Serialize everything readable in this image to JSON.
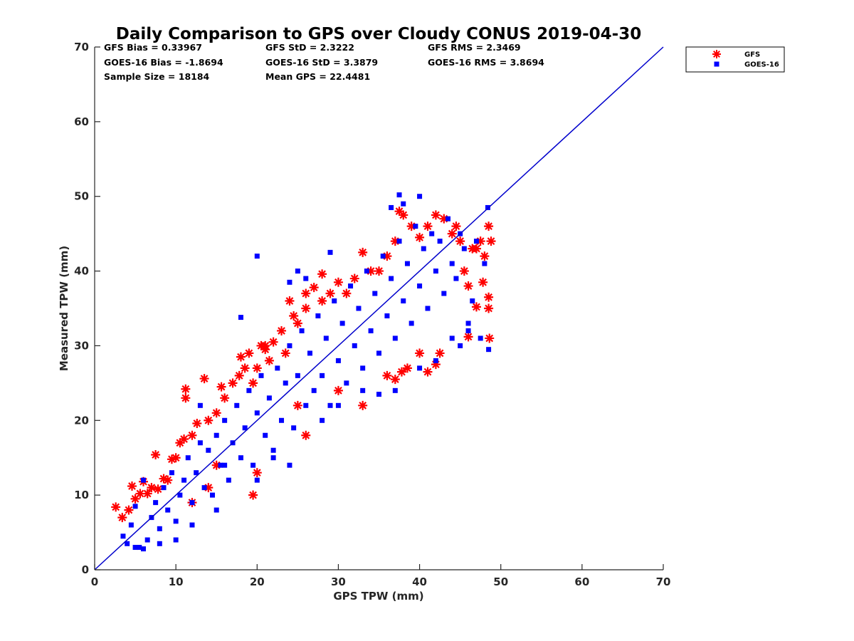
{
  "chart_data": {
    "type": "scatter",
    "title": "Daily Comparison to GPS over Cloudy CONUS 2019-04-30",
    "xlabel": "GPS TPW (mm)",
    "ylabel": "Measured TPW (mm)",
    "xlim": [
      0,
      70
    ],
    "ylim": [
      0,
      70
    ],
    "xticks": [
      0,
      10,
      20,
      30,
      40,
      50,
      60,
      70
    ],
    "yticks": [
      0,
      10,
      20,
      30,
      40,
      50,
      60,
      70
    ],
    "grid": false,
    "legend_position": "outside-top-right",
    "reference_line": {
      "from": [
        0,
        0
      ],
      "to": [
        70,
        70
      ],
      "color": "#0000cc"
    },
    "stats": [
      [
        "GFS Bias = 0.33967",
        "GFS StD = 2.3222",
        "GFS RMS = 2.3469"
      ],
      [
        "GOES-16 Bias = -1.8694",
        "GOES-16 StD = 3.3879",
        "GOES-16 RMS = 3.8694"
      ],
      [
        "Sample Size = 18184",
        "Mean GPS = 22.4481",
        ""
      ]
    ],
    "series": [
      {
        "name": "GFS",
        "marker": "asterisk",
        "color": "#ff0000",
        "points": [
          [
            2.6,
            8.4
          ],
          [
            3.4,
            7
          ],
          [
            4.2,
            8
          ],
          [
            4.6,
            11.2
          ],
          [
            5,
            9.5
          ],
          [
            5.6,
            10.2
          ],
          [
            6,
            11.8
          ],
          [
            6.5,
            10.2
          ],
          [
            7,
            11
          ],
          [
            7.5,
            15.4
          ],
          [
            7.8,
            10.8
          ],
          [
            8.5,
            12.2
          ],
          [
            9,
            12
          ],
          [
            9.5,
            14.8
          ],
          [
            10,
            15
          ],
          [
            10.5,
            17
          ],
          [
            11,
            17.5
          ],
          [
            11.2,
            24.2
          ],
          [
            11.2,
            23
          ],
          [
            12,
            18
          ],
          [
            12.6,
            19.6
          ],
          [
            13.5,
            25.6
          ],
          [
            14,
            20
          ],
          [
            15,
            21
          ],
          [
            15.6,
            24.5
          ],
          [
            16,
            23
          ],
          [
            17,
            25
          ],
          [
            17.8,
            26
          ],
          [
            18,
            28.5
          ],
          [
            18.5,
            27
          ],
          [
            19,
            29
          ],
          [
            19.5,
            25
          ],
          [
            20,
            27
          ],
          [
            20.5,
            30
          ],
          [
            21,
            30
          ],
          [
            21,
            29.5
          ],
          [
            21.5,
            28
          ],
          [
            22,
            30.5
          ],
          [
            23,
            32
          ],
          [
            23.5,
            29
          ],
          [
            24,
            36
          ],
          [
            24.5,
            34
          ],
          [
            25,
            33
          ],
          [
            26,
            37
          ],
          [
            26,
            35
          ],
          [
            27,
            37.8
          ],
          [
            28,
            39.6
          ],
          [
            28,
            36
          ],
          [
            29,
            37
          ],
          [
            30,
            38.5
          ],
          [
            31,
            37
          ],
          [
            32,
            39
          ],
          [
            33,
            42.5
          ],
          [
            34,
            40
          ],
          [
            35,
            40
          ],
          [
            36,
            42
          ],
          [
            37,
            44
          ],
          [
            37.5,
            48
          ],
          [
            38,
            47.5
          ],
          [
            39,
            46
          ],
          [
            40,
            44.5
          ],
          [
            41,
            46
          ],
          [
            42,
            47.5
          ],
          [
            43,
            47
          ],
          [
            44,
            45
          ],
          [
            44.5,
            46
          ],
          [
            45,
            44
          ],
          [
            45.5,
            40
          ],
          [
            46,
            38
          ],
          [
            46,
            31.2
          ],
          [
            46.5,
            43
          ],
          [
            47,
            43
          ],
          [
            47,
            35.2
          ],
          [
            47.5,
            44
          ],
          [
            47.8,
            38.5
          ],
          [
            48,
            42
          ],
          [
            48.5,
            46
          ],
          [
            48.8,
            44
          ],
          [
            48.5,
            36.5
          ],
          [
            48.5,
            35
          ],
          [
            48.6,
            31
          ],
          [
            36,
            26
          ],
          [
            37,
            25.5
          ],
          [
            37.8,
            26.5
          ],
          [
            38.5,
            27
          ],
          [
            40,
            29
          ],
          [
            41,
            26.5
          ],
          [
            42,
            27.5
          ],
          [
            42.5,
            29
          ],
          [
            20,
            13
          ],
          [
            19.5,
            10
          ],
          [
            26,
            18
          ],
          [
            33,
            22
          ],
          [
            30,
            24
          ],
          [
            25,
            22
          ],
          [
            15,
            14
          ],
          [
            14,
            11
          ],
          [
            12,
            9
          ]
        ]
      },
      {
        "name": "GOES-16",
        "marker": "square",
        "color": "#0000ff",
        "points": [
          [
            3.5,
            4.5
          ],
          [
            4,
            3.5
          ],
          [
            4.5,
            6
          ],
          [
            5,
            8.5
          ],
          [
            5.5,
            3
          ],
          [
            6,
            12
          ],
          [
            6.5,
            4
          ],
          [
            7,
            7
          ],
          [
            7.5,
            9
          ],
          [
            8,
            5.5
          ],
          [
            8.5,
            11
          ],
          [
            9,
            8
          ],
          [
            9.5,
            13
          ],
          [
            10,
            6.5
          ],
          [
            10.5,
            10
          ],
          [
            11,
            12
          ],
          [
            11.5,
            15
          ],
          [
            12,
            9
          ],
          [
            12.5,
            13
          ],
          [
            13,
            17
          ],
          [
            13.5,
            11
          ],
          [
            14,
            16
          ],
          [
            14.5,
            10
          ],
          [
            15,
            18
          ],
          [
            15.5,
            14
          ],
          [
            16,
            20
          ],
          [
            16.5,
            12
          ],
          [
            17,
            17
          ],
          [
            17.5,
            22
          ],
          [
            18,
            15
          ],
          [
            18.5,
            19
          ],
          [
            19,
            24
          ],
          [
            19.5,
            14
          ],
          [
            20,
            21
          ],
          [
            20.5,
            26
          ],
          [
            21,
            18
          ],
          [
            21.5,
            23
          ],
          [
            22,
            16
          ],
          [
            22.5,
            27
          ],
          [
            23,
            20
          ],
          [
            23.5,
            25
          ],
          [
            24,
            30
          ],
          [
            24.5,
            19
          ],
          [
            25,
            26
          ],
          [
            25.5,
            32
          ],
          [
            26,
            22
          ],
          [
            26.5,
            29
          ],
          [
            27,
            24
          ],
          [
            27.5,
            34
          ],
          [
            28,
            26
          ],
          [
            28.5,
            31
          ],
          [
            29,
            22
          ],
          [
            29.5,
            36
          ],
          [
            30,
            28
          ],
          [
            30.5,
            33
          ],
          [
            31,
            25
          ],
          [
            31.5,
            38
          ],
          [
            32,
            30
          ],
          [
            32.5,
            35
          ],
          [
            33,
            27
          ],
          [
            33.5,
            40
          ],
          [
            34,
            32
          ],
          [
            34.5,
            37
          ],
          [
            35,
            29
          ],
          [
            35.5,
            42
          ],
          [
            36,
            34
          ],
          [
            36.5,
            39
          ],
          [
            37,
            31
          ],
          [
            37.5,
            44
          ],
          [
            38,
            36
          ],
          [
            38.5,
            41
          ],
          [
            39,
            33
          ],
          [
            39.5,
            46
          ],
          [
            40,
            38
          ],
          [
            40.5,
            43
          ],
          [
            41,
            35
          ],
          [
            41.5,
            45
          ],
          [
            42,
            40
          ],
          [
            42.5,
            44
          ],
          [
            43,
            37
          ],
          [
            43.5,
            47
          ],
          [
            44,
            41
          ],
          [
            44.5,
            39
          ],
          [
            45,
            45
          ],
          [
            45.5,
            43
          ],
          [
            46,
            33
          ],
          [
            46.5,
            36
          ],
          [
            47,
            44
          ],
          [
            47.5,
            31
          ],
          [
            48,
            41
          ],
          [
            48.5,
            29.5
          ],
          [
            48.4,
            48.5
          ],
          [
            37.5,
            50.2
          ],
          [
            38,
            49
          ],
          [
            40,
            50
          ],
          [
            36.5,
            48.5
          ],
          [
            29,
            42.5
          ],
          [
            25,
            40
          ],
          [
            20,
            42
          ],
          [
            18,
            33.8
          ],
          [
            24,
            38.5
          ],
          [
            26,
            39
          ],
          [
            13,
            22
          ],
          [
            16,
            14
          ],
          [
            20,
            12
          ],
          [
            22,
            15
          ],
          [
            24,
            14
          ],
          [
            28,
            20
          ],
          [
            30,
            22
          ],
          [
            33,
            24
          ],
          [
            35,
            23.5
          ],
          [
            37,
            24
          ],
          [
            40,
            27
          ],
          [
            42,
            28
          ],
          [
            44,
            31
          ],
          [
            45,
            30
          ],
          [
            46,
            32
          ],
          [
            15,
            8
          ],
          [
            12,
            6
          ],
          [
            10,
            4
          ],
          [
            8,
            3.5
          ],
          [
            6,
            2.8
          ],
          [
            5,
            3
          ]
        ]
      }
    ]
  }
}
